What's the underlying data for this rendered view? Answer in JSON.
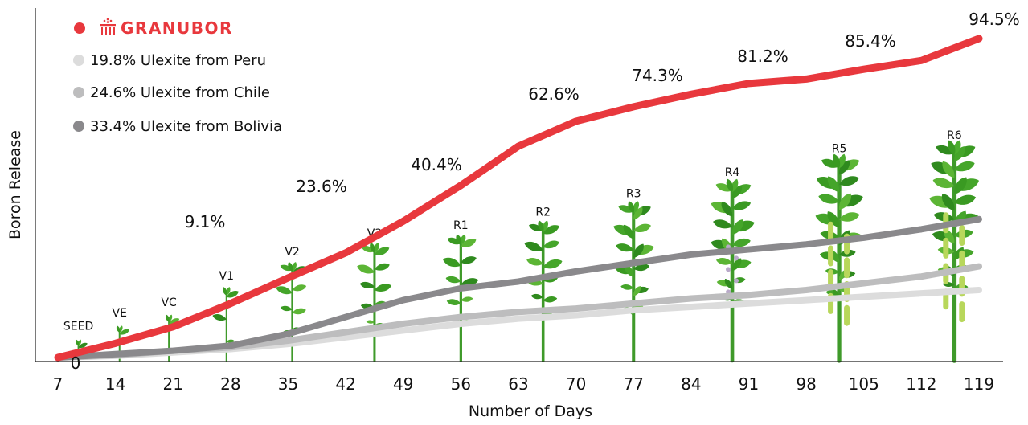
{
  "chart_data": {
    "type": "line",
    "xlabel": "Number of Days",
    "ylabel": "Boron Release",
    "x": [
      7,
      14,
      21,
      28,
      35,
      42,
      49,
      56,
      63,
      70,
      77,
      84,
      91,
      98,
      105,
      112,
      119
    ],
    "origin_label": "0",
    "series": [
      {
        "name": "GRANUBOR",
        "color": "#e8383d",
        "values": [
          0,
          4.2,
          9.1,
          16,
          23.6,
          31,
          40.4,
          51,
          62.6,
          70,
          74.3,
          78,
          81.2,
          82.5,
          85.4,
          88,
          94.5
        ]
      },
      {
        "name": "19.8% Ulexite from Peru",
        "color": "#dcdcdc",
        "values": [
          0,
          0.5,
          1.5,
          2.5,
          4,
          6,
          8,
          10,
          11.5,
          12.5,
          14,
          15,
          16,
          17,
          18,
          19,
          20
        ]
      },
      {
        "name": "24.6% Ulexite from Chile",
        "color": "#bdbdbe",
        "values": [
          0,
          0.7,
          2,
          3,
          5,
          7.5,
          10,
          12,
          13.5,
          14.5,
          16,
          17.5,
          18.5,
          20,
          22,
          24,
          27
        ]
      },
      {
        "name": "33.4% Ulexite from Bolivia",
        "color": "#8a898c",
        "values": [
          0,
          1,
          2,
          3.5,
          7,
          12,
          17,
          20.5,
          22.5,
          25.5,
          28,
          30.5,
          32,
          33.5,
          35.5,
          38,
          41
        ]
      }
    ],
    "data_labels": [
      {
        "x": 21,
        "text": "9.1%"
      },
      {
        "x": 35,
        "text": "23.6%"
      },
      {
        "x": 49,
        "text": "40.4%"
      },
      {
        "x": 63,
        "text": "62.6%"
      },
      {
        "x": 77,
        "text": "74.3%"
      },
      {
        "x": 91,
        "text": "81.2%"
      },
      {
        "x": 105,
        "text": "85.4%"
      },
      {
        "x": 119,
        "text": "94.5%"
      }
    ],
    "growth_stages": [
      {
        "label": "SEED",
        "x": 9.5,
        "size": 0.08
      },
      {
        "label": "VE",
        "x": 14.5,
        "size": 0.13
      },
      {
        "label": "VC",
        "x": 20.5,
        "size": 0.17
      },
      {
        "label": "V1",
        "x": 27.5,
        "size": 0.27
      },
      {
        "label": "V2",
        "x": 35.5,
        "size": 0.36
      },
      {
        "label": "V3",
        "x": 45.5,
        "size": 0.43
      },
      {
        "label": "R1",
        "x": 56,
        "size": 0.46
      },
      {
        "label": "R2",
        "x": 66,
        "size": 0.51
      },
      {
        "label": "R3",
        "x": 77,
        "size": 0.58
      },
      {
        "label": "R4",
        "x": 89,
        "size": 0.66
      },
      {
        "label": "R5",
        "x": 102,
        "size": 0.75
      },
      {
        "label": "R6",
        "x": 116,
        "size": 0.8
      }
    ],
    "legend_position": "top-left",
    "grid": false
  }
}
